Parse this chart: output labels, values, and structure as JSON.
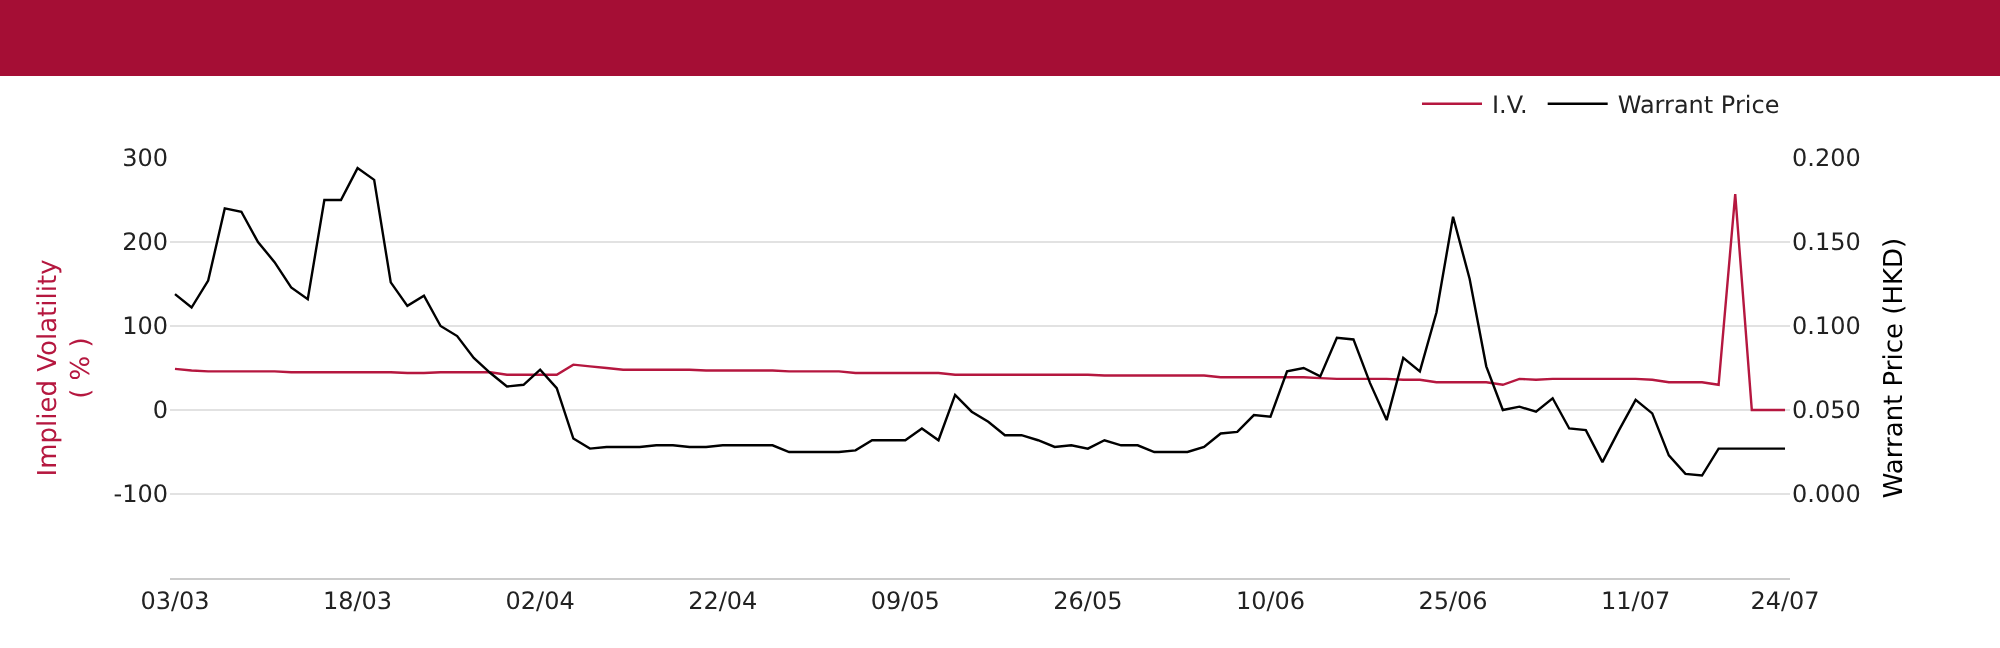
{
  "chart_data": {
    "type": "line",
    "categories": [
      "03/03",
      null,
      null,
      null,
      null,
      null,
      null,
      null,
      null,
      null,
      null,
      "18/03",
      null,
      null,
      null,
      null,
      null,
      null,
      null,
      null,
      null,
      null,
      "02/04",
      null,
      null,
      null,
      null,
      null,
      null,
      null,
      null,
      null,
      null,
      "22/04",
      null,
      null,
      null,
      null,
      null,
      null,
      null,
      null,
      null,
      null,
      "09/05",
      null,
      null,
      null,
      null,
      null,
      null,
      null,
      null,
      null,
      null,
      "26/05",
      null,
      null,
      null,
      null,
      null,
      null,
      null,
      null,
      null,
      null,
      "10/06",
      null,
      null,
      null,
      null,
      null,
      null,
      null,
      null,
      null,
      null,
      "25/06",
      null,
      null,
      null,
      null,
      null,
      null,
      null,
      null,
      null,
      null,
      "11/07",
      null,
      null,
      null,
      null,
      null,
      null,
      null,
      null,
      "24/07"
    ],
    "series": [
      {
        "name": "I.V.",
        "color": "#b5173f",
        "values": [
          49,
          47,
          46,
          46,
          46,
          46,
          46,
          45,
          45,
          45,
          45,
          45,
          45,
          45,
          44,
          44,
          45,
          45,
          45,
          45,
          42,
          42,
          42,
          42,
          54,
          52,
          50,
          48,
          48,
          48,
          48,
          48,
          47,
          47,
          47,
          47,
          47,
          46,
          46,
          46,
          46,
          44,
          44,
          44,
          44,
          44,
          44,
          42,
          42,
          42,
          42,
          42,
          42,
          42,
          42,
          42,
          41,
          41,
          41,
          41,
          41,
          41,
          41,
          39,
          39,
          39,
          39,
          39,
          39,
          38,
          37,
          37,
          37,
          37,
          36,
          36,
          33,
          33,
          33,
          33,
          30,
          37,
          36,
          37,
          37,
          37,
          37,
          37,
          37,
          36,
          33,
          33,
          33,
          30,
          257,
          0,
          0,
          0
        ]
      },
      {
        "name": "Warrant Price",
        "color": "#000000",
        "axis": "y2",
        "values": [
          0.119,
          0.111,
          0.127,
          0.17,
          0.168,
          0.15,
          0.138,
          0.123,
          0.116,
          0.175,
          0.175,
          0.194,
          0.187,
          0.126,
          0.112,
          0.118,
          0.1,
          0.094,
          0.081,
          0.072,
          0.064,
          0.065,
          0.074,
          0.063,
          0.033,
          0.027,
          0.028,
          0.028,
          0.028,
          0.029,
          0.029,
          0.028,
          0.028,
          0.029,
          0.029,
          0.029,
          0.029,
          0.025,
          0.025,
          0.025,
          0.025,
          0.026,
          0.032,
          0.032,
          0.032,
          0.039,
          0.032,
          0.059,
          0.049,
          0.043,
          0.035,
          0.035,
          0.032,
          0.028,
          0.029,
          0.027,
          0.032,
          0.029,
          0.029,
          0.025,
          0.025,
          0.025,
          0.028,
          0.036,
          0.037,
          0.047,
          0.046,
          0.073,
          0.075,
          0.07,
          0.093,
          0.092,
          0.066,
          0.044,
          0.081,
          0.073,
          0.108,
          0.165,
          0.128,
          0.076,
          0.05,
          0.052,
          0.049,
          0.057,
          0.039,
          0.038,
          0.019,
          0.038,
          0.056,
          0.048,
          0.023,
          0.012,
          0.011,
          0.027,
          0.027,
          0.027,
          0.027,
          0.027
        ]
      }
    ],
    "ylabel": "Implied Volatility\n( % )",
    "y2label": "Warrant Price (HKD)",
    "ylim": [
      -200,
      300
    ],
    "yticks": [
      -100,
      0,
      100,
      200,
      300
    ],
    "y2lim": [
      -0.05,
      0.2
    ],
    "y2ticks": [
      {
        "value": 0,
        "label": "0.000"
      },
      {
        "value": 0.05,
        "label": "0.050"
      },
      {
        "value": 0.1,
        "label": "0.100"
      },
      {
        "value": 0.15,
        "label": "0.150"
      },
      {
        "value": 0.2,
        "label": "0.200"
      }
    ],
    "grid": "y",
    "legend": "top right",
    "marker": "none",
    "line_style": "solid"
  }
}
